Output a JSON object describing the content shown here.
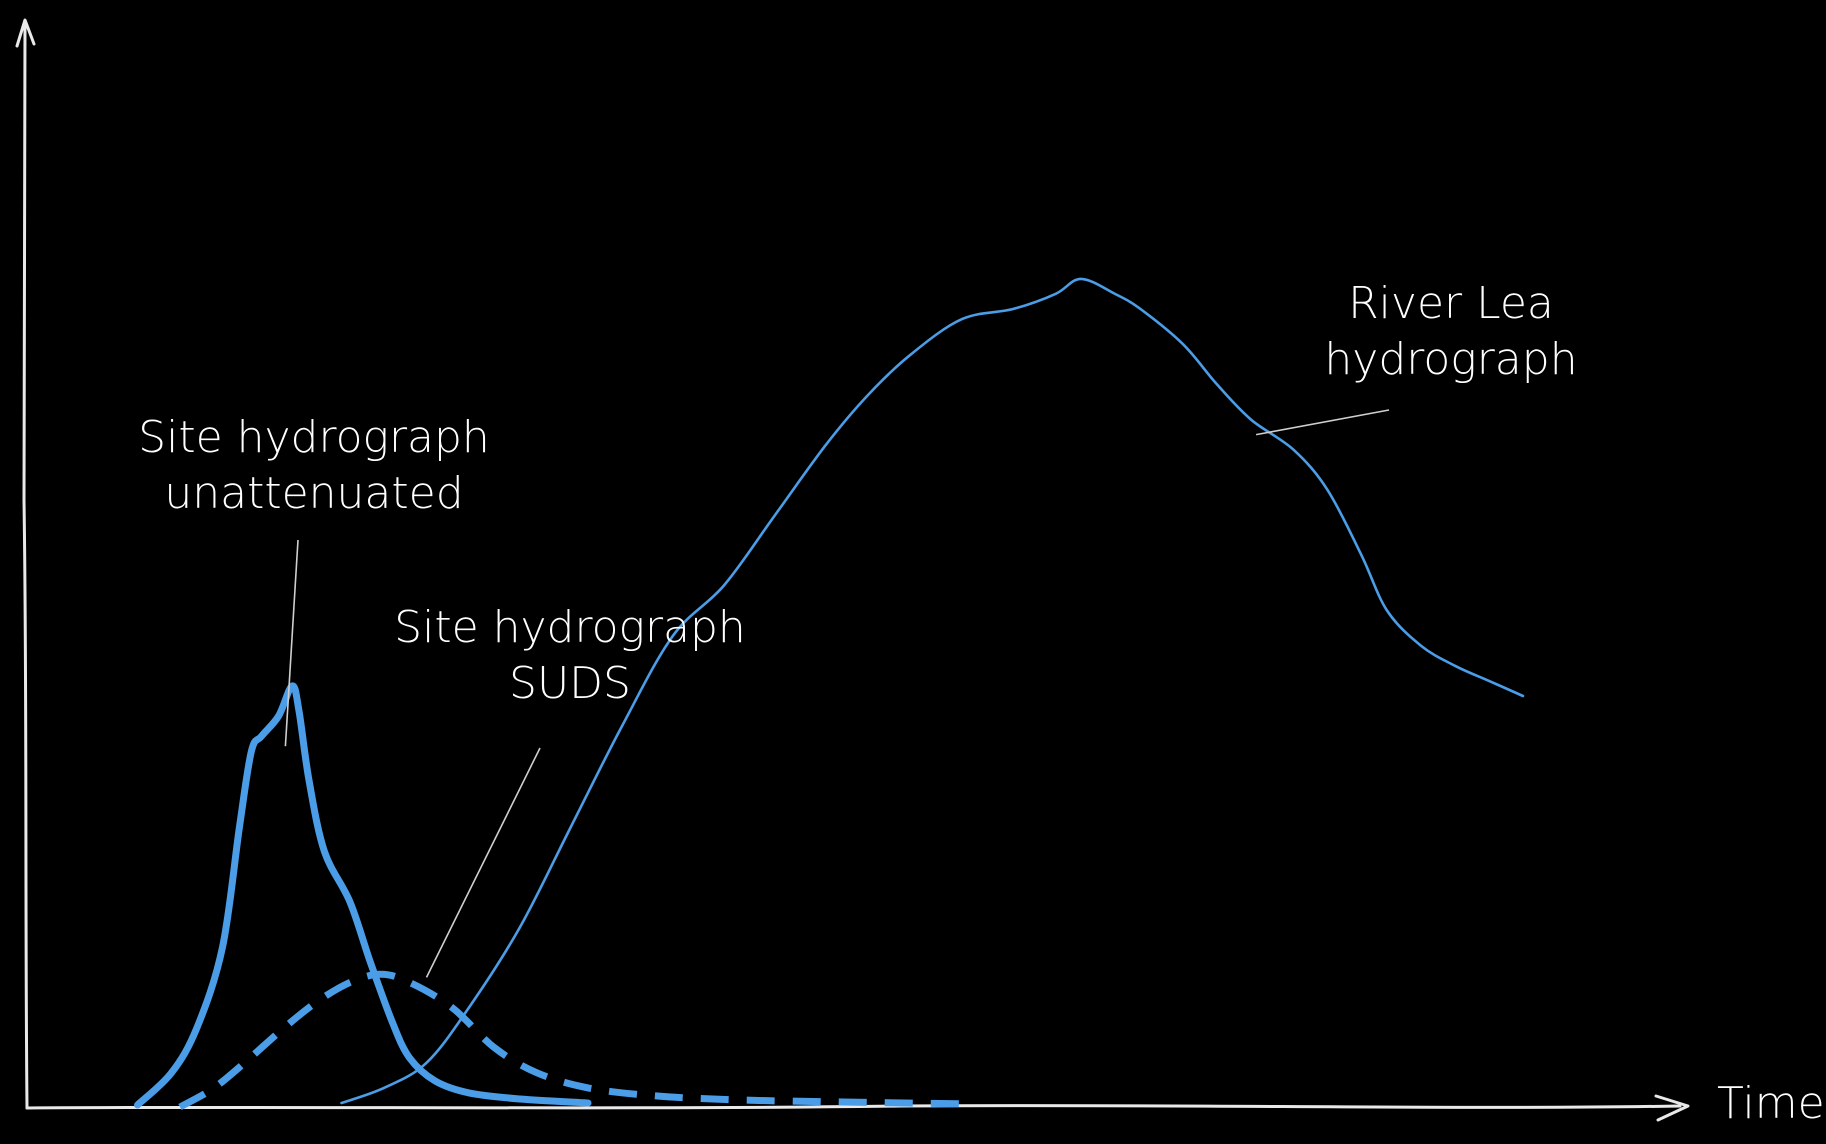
{
  "chart_data": {
    "type": "line",
    "title": "",
    "xlabel": "Time",
    "ylabel": "",
    "grid": false,
    "legend": "none",
    "xlim": [
      0,
      100
    ],
    "ylim": [
      0,
      100
    ],
    "colors": {
      "background": "#000000",
      "axes": "#e9e9e9",
      "text": "#ffffff",
      "series_line": "#4a9de6",
      "callout": "#cfcfcf"
    },
    "series": [
      {
        "name": "Site hydrograph unattenuated",
        "style": "solid-thick",
        "x": [
          6.5,
          8.5,
          10.0,
          11.5,
          12.5,
          13.2,
          13.8,
          14.8,
          15.6,
          16.0,
          16.6,
          17.5,
          19.0,
          20.2,
          21.5,
          22.5,
          24.0,
          26.0,
          29.0,
          33.0
        ],
        "y": [
          0.3,
          3.5,
          8.0,
          16.0,
          28.0,
          35.5,
          37.0,
          39.0,
          42.0,
          39.5,
          32.5,
          25.5,
          20.5,
          14.5,
          8.5,
          5.0,
          2.7,
          1.5,
          0.9,
          0.5
        ]
      },
      {
        "name": "Site hydrograph SUDS",
        "style": "dashed-thick",
        "x": [
          9.0,
          11.0,
          13.0,
          15.0,
          17.0,
          19.0,
          20.8,
          22.5,
          25.0,
          27.5,
          30.0,
          33.0,
          37.0,
          42.0,
          48.0,
          55.5
        ],
        "y": [
          0.1,
          2.0,
          4.8,
          7.8,
          10.5,
          12.5,
          13.3,
          12.5,
          10.0,
          6.0,
          3.5,
          2.0,
          1.2,
          0.8,
          0.6,
          0.4
        ]
      },
      {
        "name": "River Lea hydrograph",
        "style": "solid-thin",
        "x": [
          18.5,
          21.0,
          23.5,
          26.0,
          29.0,
          32.0,
          35.0,
          38.0,
          41.0,
          44.0,
          47.0,
          49.5,
          52.0,
          55.0,
          58.0,
          60.5,
          62.0,
          64.0,
          65.5,
          68.0,
          70.0,
          72.0,
          74.5,
          76.5,
          78.5,
          80.0,
          82.0,
          84.0,
          86.0,
          88.0
        ],
        "y": [
          0.5,
          2.0,
          4.5,
          10.0,
          18.0,
          28.0,
          38.0,
          47.0,
          52.0,
          59.0,
          66.0,
          71.0,
          75.0,
          78.5,
          79.5,
          81.0,
          82.5,
          81.0,
          79.5,
          76.0,
          72.0,
          68.5,
          65.5,
          61.5,
          55.0,
          49.5,
          46.0,
          44.0,
          42.5,
          41.0
        ]
      }
    ],
    "annotations": [
      {
        "lines": [
          "Site hydrograph",
          "unattenuated"
        ],
        "points_to": "Site hydrograph unattenuated",
        "tip": [
          15.2,
          36.0
        ]
      },
      {
        "lines": [
          "Site hydrograph",
          "SUDS"
        ],
        "points_to": "Site hydrograph SUDS",
        "tip": [
          23.5,
          13.0
        ]
      },
      {
        "lines": [
          "River Lea",
          "hydrograph"
        ],
        "points_to": "River Lea hydrograph",
        "tip": [
          72.3,
          67.0
        ]
      }
    ]
  }
}
